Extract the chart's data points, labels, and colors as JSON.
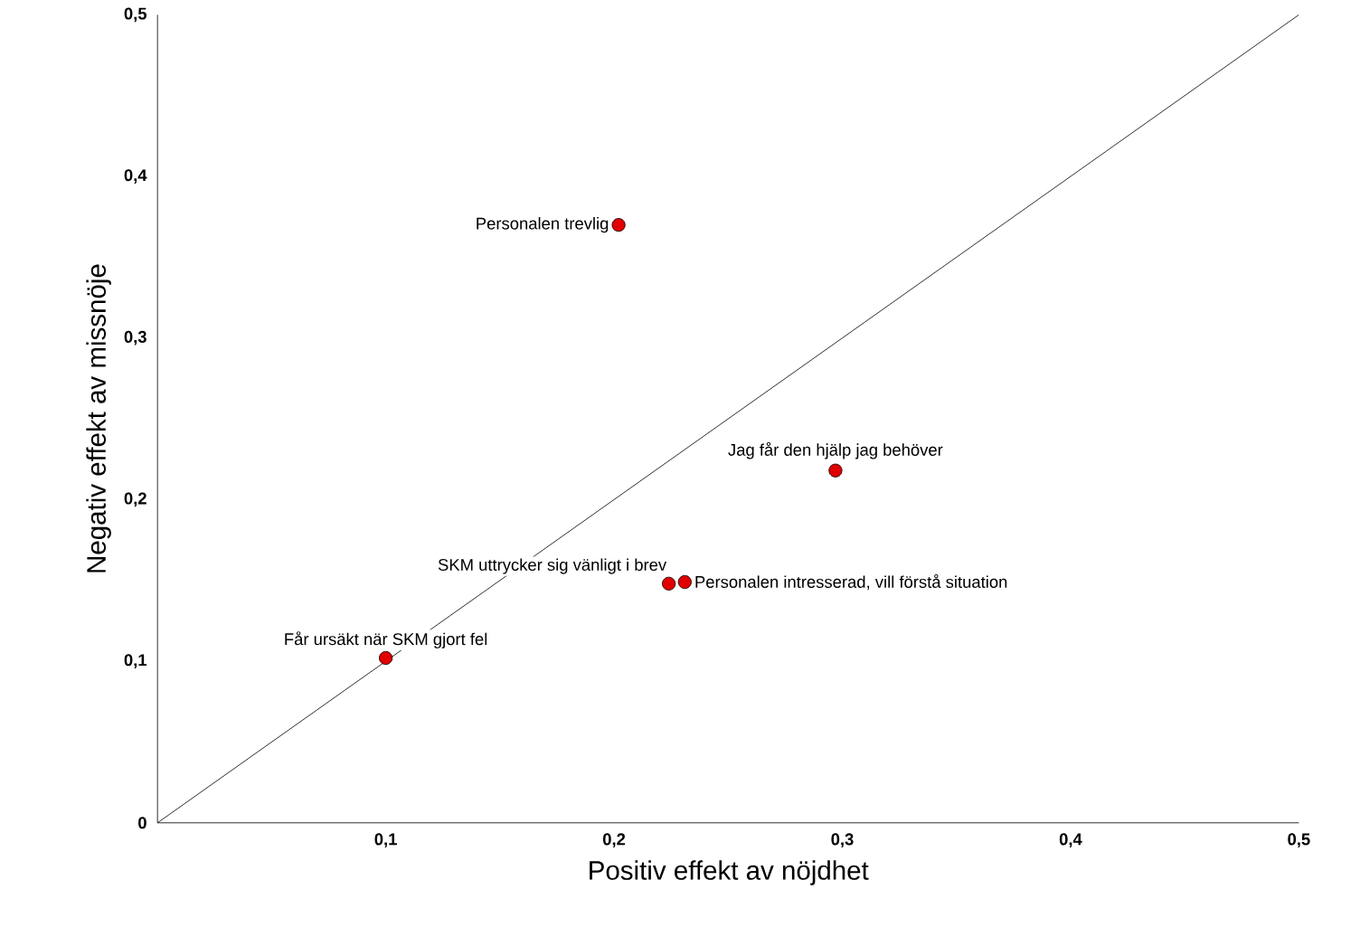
{
  "chart_data": {
    "type": "scatter",
    "xlabel": "Positiv effekt av nöjdhet",
    "ylabel": "Negativ effekt av missnöje",
    "xlim": [
      0,
      0.5
    ],
    "ylim": [
      0,
      0.5
    ],
    "xticks": [
      {
        "value": 0.1,
        "label": "0,1"
      },
      {
        "value": 0.2,
        "label": "0,2"
      },
      {
        "value": 0.3,
        "label": "0,3"
      },
      {
        "value": 0.4,
        "label": "0,4"
      },
      {
        "value": 0.5,
        "label": "0,5"
      }
    ],
    "yticks": [
      0,
      {
        "value": 0.1,
        "label": "0,1"
      },
      {
        "value": 0.2,
        "label": "0,2"
      },
      {
        "value": 0.3,
        "label": "0,3"
      },
      {
        "value": 0.4,
        "label": "0,4"
      },
      {
        "value": 0.5,
        "label": "0,5"
      }
    ],
    "grid": false,
    "series": [
      {
        "type": "line",
        "marker": "none",
        "color": "#000000",
        "x": [
          0,
          0.5
        ],
        "values": [
          0,
          0.5
        ]
      },
      {
        "marker": "circle",
        "color": "#e00000",
        "x": [
          0.1,
          0.202,
          0.297,
          0.224,
          0.231
        ],
        "values": [
          0.102,
          0.37,
          0.218,
          0.148,
          0.149
        ]
      }
    ],
    "annotations": [
      {
        "text": "Får ursäkt när SKM gjort fel",
        "x": 0.1,
        "y": 0.102
      },
      {
        "text": "Personalen trevlig",
        "x": 0.202,
        "y": 0.37
      },
      {
        "text": "Jag får den hjälp jag behöver",
        "x": 0.297,
        "y": 0.218
      },
      {
        "text": "SKM uttrycker sig vänligt i brev",
        "x": 0.224,
        "y": 0.148
      },
      {
        "text": "Personalen intresserad, vill förstå situation",
        "x": 0.231,
        "y": 0.149
      }
    ]
  }
}
